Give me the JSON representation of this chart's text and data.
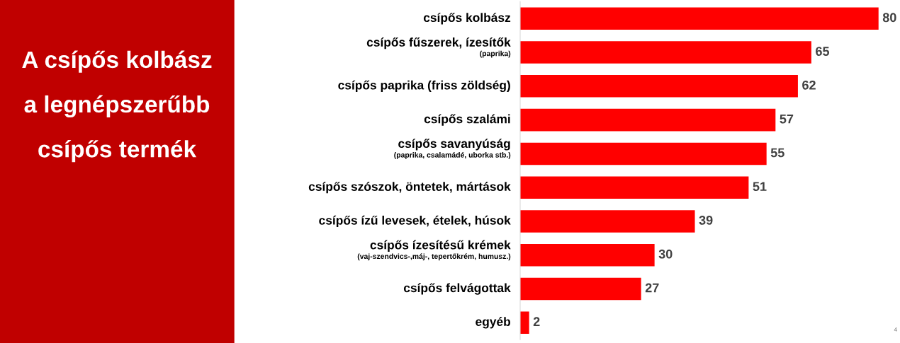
{
  "chart_data": {
    "type": "bar",
    "orientation": "horizontal",
    "title": "A csípős kolbász\na legnépszerűbb\ncsípős termék",
    "categories": [
      "csípős kolbász",
      "csípős fűszerek, ízesítők\n(paprika)",
      "csípős paprika (friss zöldség)",
      "csípős szalámi",
      "csípős savanyúság\n(paprika, csalamádé, uborka stb.)",
      "csípős szószok, öntetek, mártások",
      "csípős ízű levesek, ételek, húsok",
      "csípős ízesítésű krémek\n(vaj-szendvics-,máj-, tepertőkrém, humusz.)",
      "csípős felvágottak",
      "egyéb"
    ],
    "values": [
      80,
      65,
      62,
      57,
      55,
      51,
      39,
      30,
      27,
      2
    ],
    "color": "#ff0000",
    "data_labels": true,
    "annotations": [
      "4"
    ]
  }
}
